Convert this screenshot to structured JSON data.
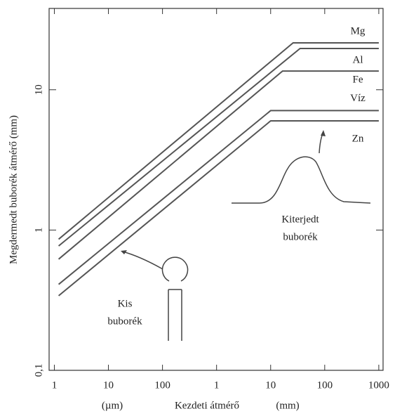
{
  "chart_data": {
    "type": "line",
    "xlabel": "Kezdeti átmérő",
    "ylabel": "Megdermedt buborék átmérő (mm)",
    "x_units": [
      "(µm)",
      "(mm)"
    ],
    "log_x": true,
    "log_y": true,
    "xlim": [
      0.8,
      1200000
    ],
    "ylim": [
      0.1,
      38
    ],
    "xticks": [
      1,
      10,
      100,
      {
        "value": 1000,
        "label": "1"
      },
      {
        "value": 10000,
        "label": "10"
      },
      {
        "value": 100000,
        "label": "100"
      },
      {
        "value": 1000000,
        "label": "1000"
      }
    ],
    "yticks": [
      {
        "value": 0.1,
        "label": "0,1"
      },
      1,
      10
    ],
    "series": [
      {
        "name": "Mg",
        "color": "#555555",
        "x": [
          1.2,
          26000,
          1000000
        ],
        "values": [
          0.86,
          21.6,
          21.6
        ]
      },
      {
        "name": "Al",
        "color": "#555555",
        "x": [
          1.2,
          35000,
          1000000
        ],
        "values": [
          0.77,
          19.7,
          19.7
        ]
      },
      {
        "name": "Fe",
        "color": "#555555",
        "x": [
          1.2,
          16600,
          1000000
        ],
        "values": [
          0.62,
          13.6,
          13.6
        ]
      },
      {
        "name": "Víz",
        "color": "#555555",
        "x": [
          1.2,
          10000,
          1000000
        ],
        "values": [
          0.41,
          7.1,
          7.1
        ]
      },
      {
        "name": "Zn",
        "color": "#555555",
        "x": [
          1.2,
          10000,
          1000000
        ],
        "values": [
          0.34,
          6,
          6
        ]
      }
    ],
    "annotations": [
      [
        "Kis",
        "buborék"
      ],
      [
        "Kiterjedt",
        "buborék"
      ]
    ]
  }
}
